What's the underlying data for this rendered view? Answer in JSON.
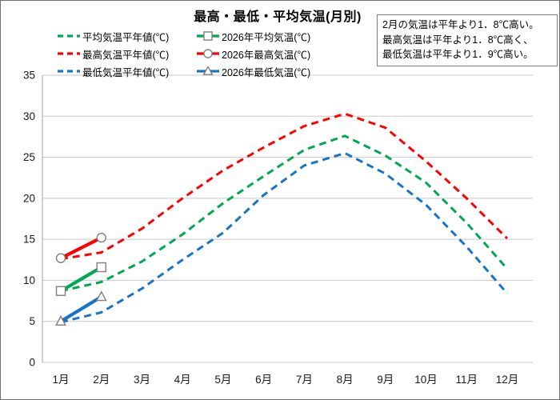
{
  "title": "最高・最低・平均気温(月別)",
  "legend": {
    "items": [
      {
        "label": "平均気温平年値(℃)",
        "series": 1
      },
      {
        "label": "2026年平均気温(℃)",
        "series": 4
      },
      {
        "label": "最高気温平年値(℃)",
        "series": 0
      },
      {
        "label": "2026年最高気温(℃)",
        "series": 3
      },
      {
        "label": "最低気温平年値(℃)",
        "series": 2
      },
      {
        "label": "2026年最低気温(℃)",
        "series": 5
      }
    ]
  },
  "annotation": {
    "lines": [
      "2月の気温は平年より1．8℃高い。",
      "最高気温は平年より1．8℃高く、",
      "最低気温は平年より1．9℃高い。"
    ]
  },
  "colors": {
    "max": "#FF0000",
    "mean": "#00A84E",
    "min": "#1874C8",
    "grid": "#C8C8C8",
    "axis": "#A0A0A0",
    "marker_stroke": "#7F7F7F",
    "marker_fill": "#FFFFFF"
  },
  "chart_data": {
    "type": "line",
    "title": "最高・最低・平均気温(月別)",
    "xlabel": "",
    "ylabel": "",
    "ylim": [
      0,
      35
    ],
    "yticks": [
      0,
      5,
      10,
      15,
      20,
      25,
      30,
      35
    ],
    "grid": true,
    "legend_position": "top-left",
    "categories": [
      "1月",
      "2月",
      "3月",
      "4月",
      "5月",
      "6月",
      "7月",
      "8月",
      "9月",
      "10月",
      "11月",
      "12月"
    ],
    "series": [
      {
        "name": "最高気温平年値(℃)",
        "role": "max-normal",
        "color_key": "max",
        "line": "dashed",
        "marker": "none",
        "values": [
          12.6,
          13.4,
          16.3,
          20.0,
          23.4,
          26.2,
          28.8,
          30.3,
          28.6,
          24.5,
          20.0,
          15.1
        ]
      },
      {
        "name": "平均気温平年値(℃)",
        "role": "mean-normal",
        "color_key": "mean",
        "line": "dashed",
        "marker": "none",
        "values": [
          8.7,
          9.8,
          12.3,
          15.6,
          19.4,
          22.7,
          25.9,
          27.6,
          25.2,
          21.9,
          17.0,
          11.4
        ]
      },
      {
        "name": "最低気温平年値(℃)",
        "role": "min-normal",
        "color_key": "min",
        "line": "dashed",
        "marker": "none",
        "values": [
          4.9,
          6.1,
          9.0,
          12.5,
          15.8,
          20.4,
          24.0,
          25.5,
          23.0,
          19.2,
          14.1,
          8.4
        ]
      },
      {
        "name": "2026年最高気温(℃)",
        "role": "max-2026",
        "color_key": "max",
        "line": "solid",
        "marker": "circle",
        "values": [
          12.7,
          15.2,
          null,
          null,
          null,
          null,
          null,
          null,
          null,
          null,
          null,
          null
        ]
      },
      {
        "name": "2026年平均気温(℃)",
        "role": "mean-2026",
        "color_key": "mean",
        "line": "solid",
        "marker": "square",
        "values": [
          8.7,
          11.6,
          null,
          null,
          null,
          null,
          null,
          null,
          null,
          null,
          null,
          null
        ]
      },
      {
        "name": "2026年最低気温(℃)",
        "role": "min-2026",
        "color_key": "min",
        "line": "solid",
        "marker": "triangle",
        "values": [
          5.0,
          8.0,
          null,
          null,
          null,
          null,
          null,
          null,
          null,
          null,
          null,
          null
        ]
      }
    ]
  }
}
